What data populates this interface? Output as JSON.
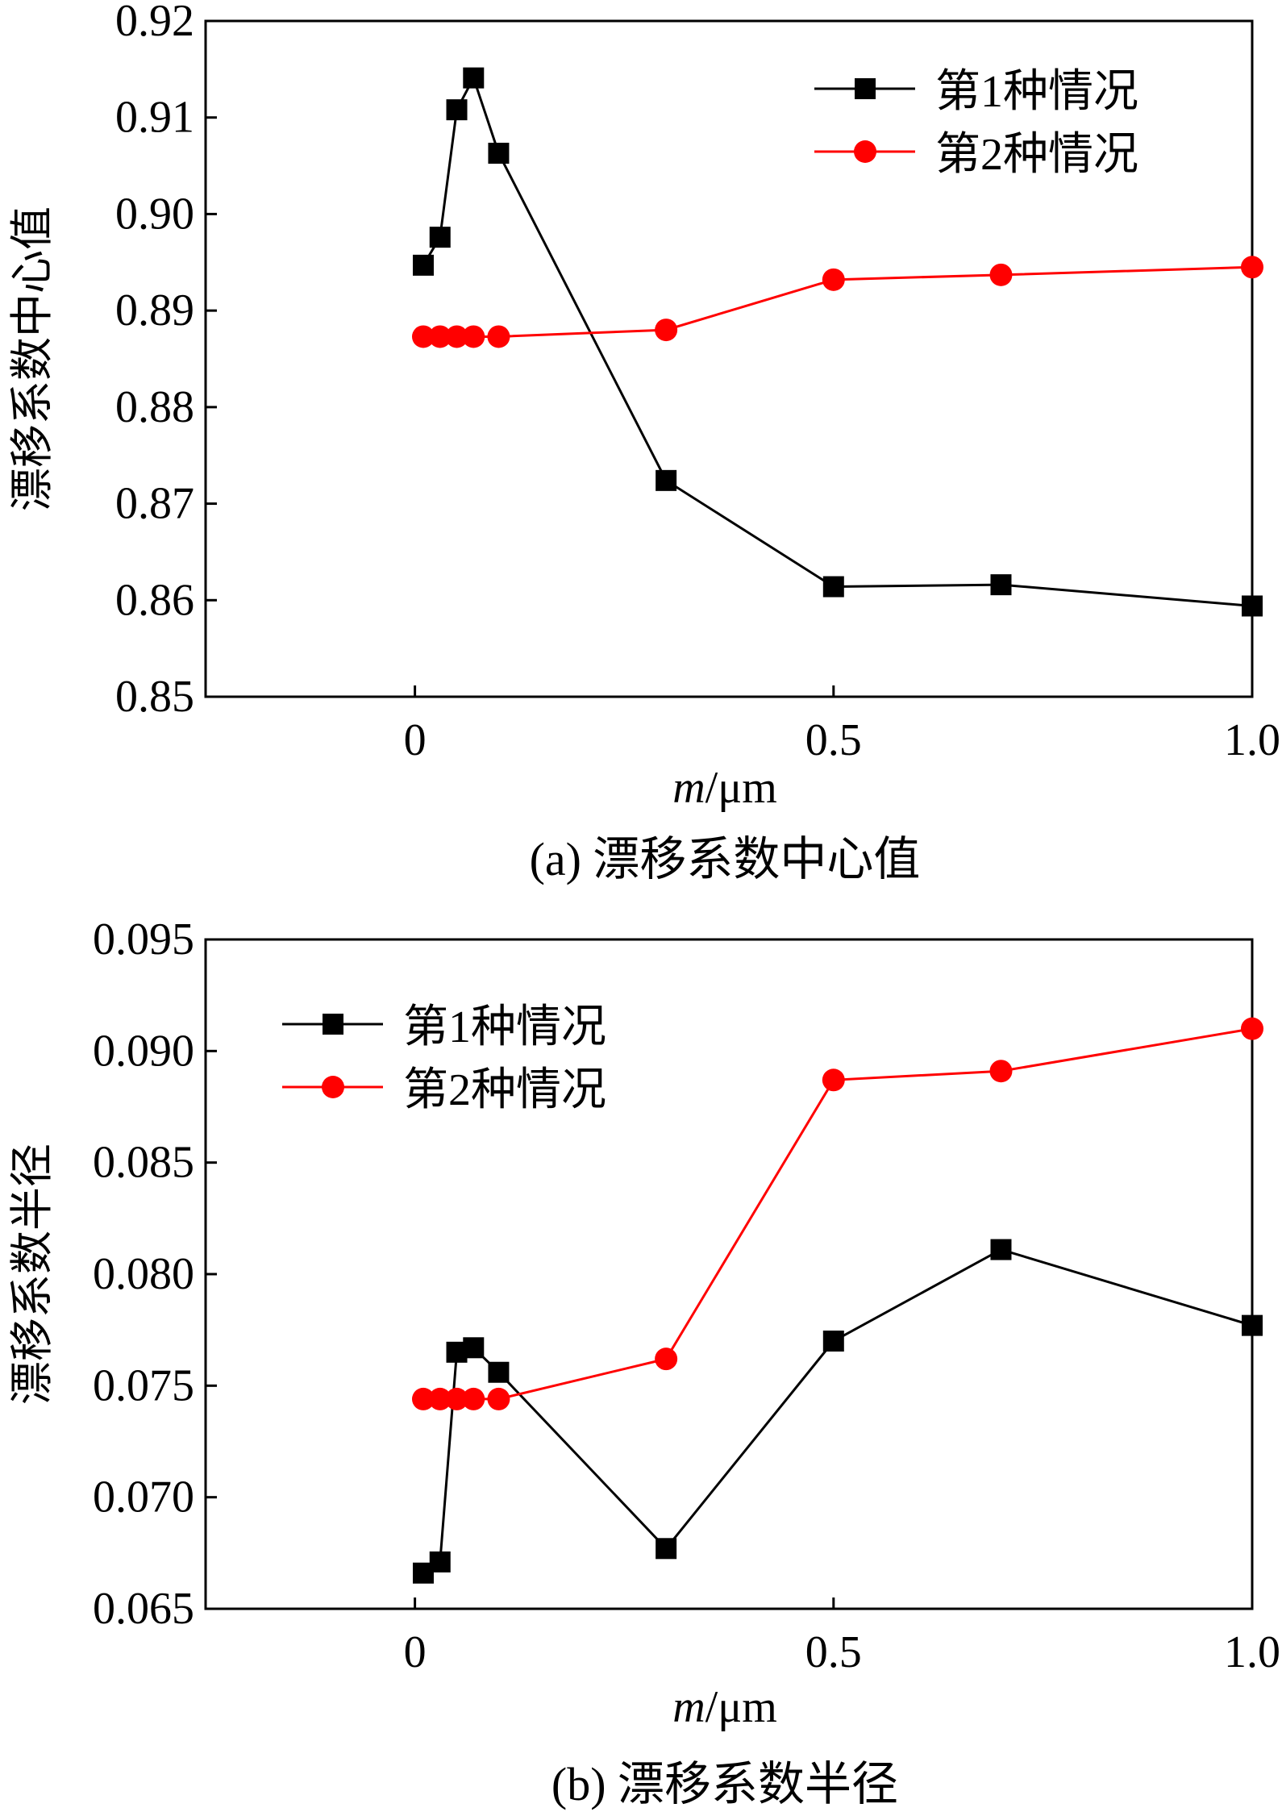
{
  "colors": {
    "series1": "#000000",
    "series2": "#ff0000"
  },
  "chart_data": [
    {
      "type": "line",
      "title": "(a) 漂移系数中心值",
      "xlabel_italic": "m",
      "xlabel_unit": "/μm",
      "ylabel": "漂移系数中心值",
      "xlim": [
        -0.25,
        1.0
      ],
      "ylim": [
        0.85,
        0.92
      ],
      "xticks": [
        0,
        0.5,
        1.0
      ],
      "xtick_labels": [
        "0",
        "0.5",
        "1.0"
      ],
      "yticks": [
        0.85,
        0.86,
        0.87,
        0.88,
        0.89,
        0.9,
        0.91,
        0.92
      ],
      "ytick_labels": [
        "0.85",
        "0.86",
        "0.87",
        "0.88",
        "0.89",
        "0.90",
        "0.91",
        "0.92"
      ],
      "legend_position": "top-right",
      "x": [
        0.01,
        0.03,
        0.05,
        0.07,
        0.1,
        0.3,
        0.5,
        0.7,
        1.0
      ],
      "series": [
        {
          "name": "第1种情况",
          "marker": "square",
          "color": "#000000",
          "values": [
            0.8947,
            0.8976,
            0.9108,
            0.9141,
            0.9063,
            0.8724,
            0.8614,
            0.8616,
            0.8594
          ]
        },
        {
          "name": "第2种情况",
          "marker": "circle",
          "color": "#ff0000",
          "values": [
            0.8873,
            0.8873,
            0.8873,
            0.8873,
            0.8873,
            0.888,
            0.8932,
            0.8937,
            0.8945
          ]
        }
      ]
    },
    {
      "type": "line",
      "title": "(b) 漂移系数半径",
      "xlabel_italic": "m",
      "xlabel_unit": "/μm",
      "ylabel": "漂移系数半径",
      "xlim": [
        -0.25,
        1.0
      ],
      "ylim": [
        0.065,
        0.095
      ],
      "xticks": [
        0,
        0.5,
        1.0
      ],
      "xtick_labels": [
        "0",
        "0.5",
        "1.0"
      ],
      "yticks": [
        0.065,
        0.07,
        0.075,
        0.08,
        0.085,
        0.09,
        0.095
      ],
      "ytick_labels": [
        "0.065",
        "0.070",
        "0.075",
        "0.080",
        "0.085",
        "0.090",
        "0.095"
      ],
      "legend_position": "top-left",
      "x": [
        0.01,
        0.03,
        0.05,
        0.07,
        0.1,
        0.3,
        0.5,
        0.7,
        1.0
      ],
      "series": [
        {
          "name": "第1种情况",
          "marker": "square",
          "color": "#000000",
          "values": [
            0.0666,
            0.0671,
            0.0765,
            0.0767,
            0.0756,
            0.0677,
            0.077,
            0.0811,
            0.0777
          ]
        },
        {
          "name": "第2种情况",
          "marker": "circle",
          "color": "#ff0000",
          "values": [
            0.0744,
            0.0744,
            0.0744,
            0.0744,
            0.0744,
            0.0762,
            0.0887,
            0.0891,
            0.091
          ]
        }
      ]
    }
  ]
}
